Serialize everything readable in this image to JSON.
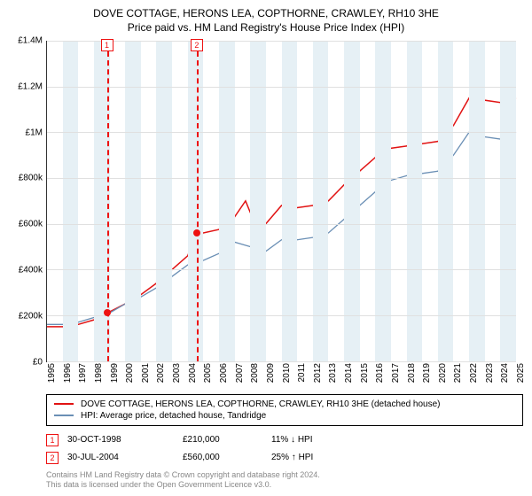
{
  "title": {
    "main": "DOVE COTTAGE, HERONS LEA, COPTHORNE, CRAWLEY, RH10 3HE",
    "sub": "Price paid vs. HM Land Registry's House Price Index (HPI)"
  },
  "chart": {
    "type": "line",
    "background_color": "#ffffff",
    "grid_color": "#e0e0e0",
    "axis_color": "#333333",
    "y": {
      "min": 0,
      "max": 1400000,
      "ticks": [
        {
          "v": 0,
          "label": "£0"
        },
        {
          "v": 200000,
          "label": "£200k"
        },
        {
          "v": 400000,
          "label": "£400k"
        },
        {
          "v": 600000,
          "label": "£600k"
        },
        {
          "v": 800000,
          "label": "£800k"
        },
        {
          "v": 1000000,
          "label": "£1M"
        },
        {
          "v": 1200000,
          "label": "£1.2M"
        },
        {
          "v": 1400000,
          "label": "£1.4M"
        }
      ]
    },
    "x": {
      "min": 1995,
      "max": 2025,
      "ticks": [
        1995,
        1996,
        1997,
        1998,
        1999,
        2000,
        2001,
        2002,
        2003,
        2004,
        2005,
        2006,
        2007,
        2008,
        2009,
        2010,
        2011,
        2012,
        2013,
        2014,
        2015,
        2016,
        2017,
        2018,
        2019,
        2020,
        2021,
        2022,
        2023,
        2024,
        2025
      ],
      "band_color": "#e6f0f5"
    },
    "series": [
      {
        "name": "property",
        "color": "#e11313",
        "width": 1.5,
        "points": [
          [
            1995,
            150000
          ],
          [
            1996,
            150000
          ],
          [
            1997,
            160000
          ],
          [
            1998,
            180000
          ],
          [
            1998.83,
            210000
          ],
          [
            1999,
            215000
          ],
          [
            2000,
            250000
          ],
          [
            2001,
            290000
          ],
          [
            2002,
            340000
          ],
          [
            2003,
            400000
          ],
          [
            2004,
            460000
          ],
          [
            2004.58,
            560000
          ],
          [
            2005,
            560000
          ],
          [
            2006,
            575000
          ],
          [
            2007,
            630000
          ],
          [
            2007.7,
            700000
          ],
          [
            2008,
            650000
          ],
          [
            2008.7,
            580000
          ],
          [
            2009,
            600000
          ],
          [
            2010,
            680000
          ],
          [
            2011,
            670000
          ],
          [
            2012,
            680000
          ],
          [
            2013,
            700000
          ],
          [
            2014,
            770000
          ],
          [
            2015,
            830000
          ],
          [
            2016,
            890000
          ],
          [
            2017,
            930000
          ],
          [
            2018,
            940000
          ],
          [
            2019,
            950000
          ],
          [
            2020,
            960000
          ],
          [
            2021,
            1030000
          ],
          [
            2022,
            1150000
          ],
          [
            2022.5,
            1190000
          ],
          [
            2023,
            1140000
          ],
          [
            2024,
            1130000
          ],
          [
            2025,
            1150000
          ]
        ]
      },
      {
        "name": "hpi",
        "color": "#6a8fb5",
        "width": 1.3,
        "points": [
          [
            1995,
            160000
          ],
          [
            1996,
            160000
          ],
          [
            1997,
            170000
          ],
          [
            1998,
            190000
          ],
          [
            1999,
            210000
          ],
          [
            2000,
            250000
          ],
          [
            2001,
            280000
          ],
          [
            2002,
            320000
          ],
          [
            2003,
            370000
          ],
          [
            2004,
            420000
          ],
          [
            2005,
            440000
          ],
          [
            2006,
            470000
          ],
          [
            2007,
            520000
          ],
          [
            2008,
            500000
          ],
          [
            2009,
            480000
          ],
          [
            2010,
            530000
          ],
          [
            2011,
            530000
          ],
          [
            2012,
            540000
          ],
          [
            2013,
            560000
          ],
          [
            2014,
            620000
          ],
          [
            2015,
            680000
          ],
          [
            2016,
            740000
          ],
          [
            2017,
            790000
          ],
          [
            2018,
            810000
          ],
          [
            2019,
            820000
          ],
          [
            2020,
            830000
          ],
          [
            2021,
            900000
          ],
          [
            2022,
            1000000
          ],
          [
            2022.5,
            1040000
          ],
          [
            2023,
            980000
          ],
          [
            2024,
            970000
          ],
          [
            2025,
            1000000
          ]
        ]
      }
    ],
    "markers": [
      {
        "id": "1",
        "x": 1998.83,
        "y": 210000
      },
      {
        "id": "2",
        "x": 2004.58,
        "y": 560000
      }
    ]
  },
  "legend": [
    {
      "color": "#e11313",
      "label": "DOVE COTTAGE, HERONS LEA, COPTHORNE, CRAWLEY, RH10 3HE (detached house)"
    },
    {
      "color": "#6a8fb5",
      "label": "HPI: Average price, detached house, Tandridge"
    }
  ],
  "transactions": [
    {
      "id": "1",
      "date": "30-OCT-1998",
      "price": "£210,000",
      "delta": "11% ↓ HPI"
    },
    {
      "id": "2",
      "date": "30-JUL-2004",
      "price": "£560,000",
      "delta": "25% ↑ HPI"
    }
  ],
  "footer": {
    "line1": "Contains HM Land Registry data © Crown copyright and database right 2024.",
    "line2": "This data is licensed under the Open Government Licence v3.0."
  }
}
